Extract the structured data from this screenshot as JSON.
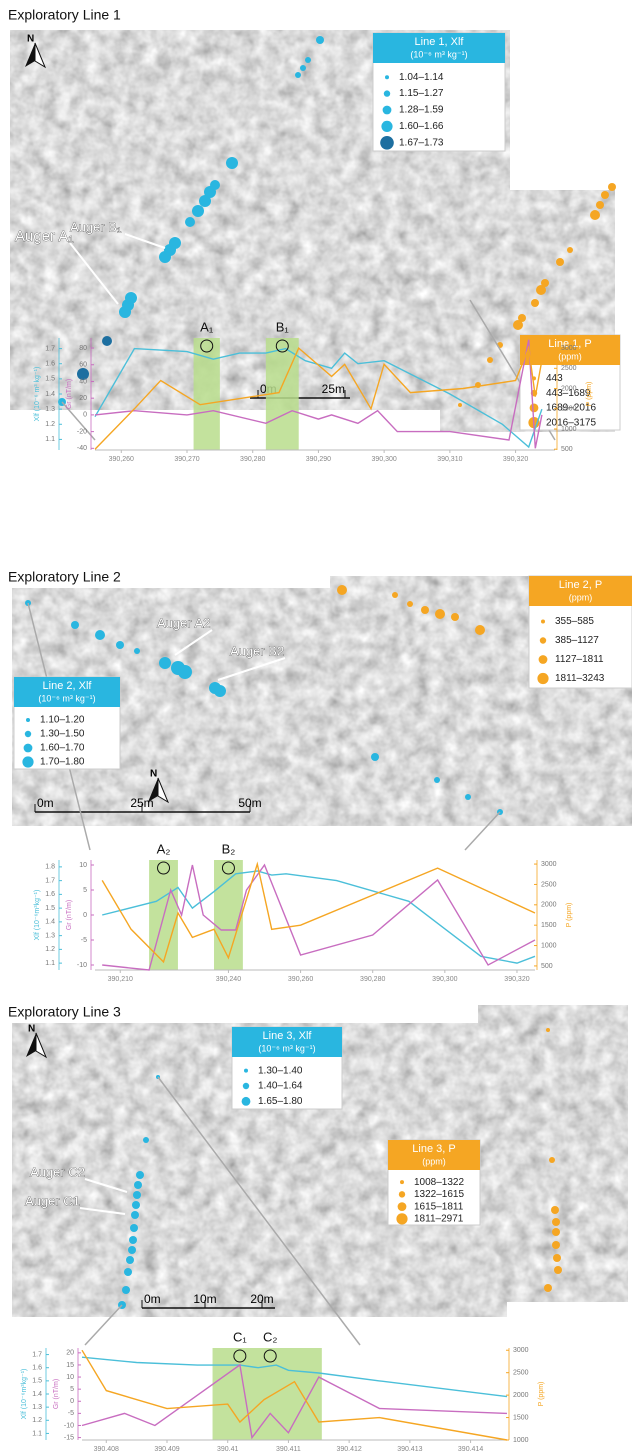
{
  "panels": [
    {
      "title": "Exploratory Line 1",
      "north": "N",
      "augers": [
        "Auger B₁",
        "Auger A₁"
      ],
      "scale": [
        "0m",
        "25m"
      ],
      "legends": [
        {
          "title": "Line 1, Xlf",
          "unit": "(10⁻⁶ m³ kg⁻¹)",
          "color": "#29b6e0",
          "entries": [
            "1.04–1.14",
            "1.15–1.27",
            "1.28–1.59",
            "1.60–1.66",
            "1.67–1.73"
          ],
          "colors": [
            "#29b6e0",
            "#29b6e0",
            "#29b6e0",
            "#29b6e0",
            "#1d6fa0"
          ]
        },
        {
          "title": "Line 1, P",
          "unit": "(ppm)",
          "color": "#f5a623",
          "entries": [
            "443",
            "443–1689",
            "1689–2016",
            "2016–3175"
          ],
          "colors": [
            "#f5a623",
            "#f5a623",
            "#f5a623",
            "#f5a623"
          ]
        }
      ],
      "chart": {
        "x": {
          "lim": [
            390256,
            390326
          ],
          "ticks": [
            {
              "value": 390260,
              "label": "390,260"
            },
            {
              "value": 390270,
              "label": "390,270"
            },
            {
              "value": 390280,
              "label": "390,280"
            },
            {
              "value": 390290,
              "label": "390,290"
            },
            {
              "value": 390300,
              "label": "390,300"
            },
            {
              "value": 390310,
              "label": "390,310"
            },
            {
              "value": 390320,
              "label": "390,320"
            }
          ]
        },
        "xlf": {
          "label": "Xlf (10⁻⁶ m³ kg⁻¹)",
          "lim": [
            1.03,
            1.77
          ],
          "ticks": [
            1.1,
            1.2,
            1.3,
            1.4,
            1.5,
            1.6,
            1.7
          ]
        },
        "gr": {
          "label": "Gr (nT/m)",
          "lim": [
            -42,
            92
          ],
          "ticks": [
            -40,
            -20,
            0,
            20,
            40,
            60,
            80
          ]
        },
        "p": {
          "label": "P (ppm)",
          "lim": [
            480,
            3250
          ],
          "ticks": [
            500,
            1000,
            1500,
            2000,
            2500,
            3000
          ]
        },
        "bands": [
          [
            390271,
            390275
          ],
          [
            390282,
            390287
          ]
        ],
        "markers": [
          {
            "label": "A₁",
            "x": 390273
          },
          {
            "label": "B₁",
            "x": 390284.5
          }
        ],
        "series": [
          {
            "axis": "xlf",
            "color": "#4bbfd9",
            "x": [
              390256,
              390262,
              390270,
              390274,
              390278,
              390282,
              390285,
              390288,
              390292,
              390294,
              390296,
              390300,
              390310,
              390318,
              390322,
              390324
            ],
            "values": [
              1.25,
              1.7,
              1.68,
              1.63,
              1.67,
              1.67,
              1.7,
              1.62,
              1.57,
              1.67,
              1.6,
              1.62,
              1.4,
              1.2,
              1.05,
              1.3
            ]
          },
          {
            "axis": "gr",
            "color": "#c86dc0",
            "x": [
              390256,
              390262,
              390270,
              390274,
              390282,
              390286,
              390290,
              390292,
              390296,
              390299,
              390302,
              390310,
              390319,
              390322,
              390323,
              390324
            ],
            "values": [
              0,
              5,
              0,
              5,
              -10,
              5,
              -5,
              0,
              -10,
              5,
              -20,
              -20,
              -30,
              90,
              -40,
              0
            ]
          },
          {
            "axis": "p",
            "color": "#f5a623",
            "x": [
              390256,
              390262,
              390266,
              390272,
              390280,
              390284,
              390287,
              390292,
              390294,
              390298,
              390300,
              390304,
              390312,
              390320,
              390322,
              390323,
              390324
            ],
            "values": [
              500,
              1500,
              2200,
              1600,
              1800,
              1900,
              3000,
              2300,
              2600,
              1500,
              2600,
              1900,
              2000,
              2200,
              3000,
              1800,
              2700
            ]
          }
        ]
      }
    },
    {
      "title": "Exploratory Line 2",
      "north": "N",
      "augers": [
        "Auger A2",
        "Auger B2"
      ],
      "scale": [
        "0m",
        "25m",
        "50m"
      ],
      "legends": [
        {
          "title": "Line 2, Xlf",
          "unit": "(10⁻⁶ m³ kg⁻¹)",
          "color": "#29b6e0",
          "entries": [
            "1.10–1.20",
            "1.30–1.50",
            "1.60–1.70",
            "1.70–1.80"
          ],
          "colors": [
            "#29b6e0",
            "#29b6e0",
            "#29b6e0",
            "#29b6e0"
          ]
        },
        {
          "title": "Line 2, P",
          "unit": "(ppm)",
          "color": "#f5a623",
          "entries": [
            "355–585",
            "385–1127",
            "1127–1811",
            "1811–3243"
          ],
          "colors": [
            "#f5a623",
            "#f5a623",
            "#f5a623",
            "#f5a623"
          ]
        }
      ],
      "chart": {
        "x": {
          "lim": [
            390203,
            390325
          ],
          "ticks": [
            {
              "value": 390210,
              "label": "390,210"
            },
            {
              "value": 390240,
              "label": "390,240"
            },
            {
              "value": 390260,
              "label": "390,260"
            },
            {
              "value": 390280,
              "label": "390,280"
            },
            {
              "value": 390300,
              "label": "390,300"
            },
            {
              "value": 390320,
              "label": "390,320"
            }
          ]
        },
        "xlf": {
          "label": "Xlf (10⁻⁶m³kg⁻¹)",
          "lim": [
            1.05,
            1.85
          ],
          "ticks": [
            1.1,
            1.2,
            1.3,
            1.4,
            1.5,
            1.6,
            1.7,
            1.8
          ]
        },
        "gr": {
          "label": "Gr (nT/m)",
          "lim": [
            -11,
            11
          ],
          "ticks": [
            -10,
            -5,
            0,
            5,
            10
          ]
        },
        "p": {
          "label": "P (ppm)",
          "lim": [
            400,
            3100
          ],
          "ticks": [
            500,
            1000,
            1500,
            2000,
            2500,
            3000
          ]
        },
        "bands": [
          [
            390218,
            390226
          ],
          [
            390236,
            390244
          ]
        ],
        "markers": [
          {
            "label": "A₂",
            "x": 390222
          },
          {
            "label": "B₂",
            "x": 390240
          }
        ],
        "series": [
          {
            "axis": "xlf",
            "color": "#4bbfd9",
            "x": [
              390205,
              390220,
              390226,
              390230,
              390236,
              390242,
              390248,
              390252,
              390256,
              390270,
              390290,
              390300,
              390310,
              390320,
              390325
            ],
            "values": [
              1.45,
              1.55,
              1.65,
              1.5,
              1.62,
              1.75,
              1.77,
              1.74,
              1.75,
              1.7,
              1.55,
              1.35,
              1.15,
              1.1,
              1.15
            ]
          },
          {
            "axis": "gr",
            "color": "#c86dc0",
            "x": [
              390205,
              390218,
              390224,
              390227,
              390230,
              390233,
              390238,
              390242,
              390245,
              390250,
              390260,
              390280,
              390298,
              390312,
              390325
            ],
            "values": [
              -10,
              -11,
              5,
              0,
              10,
              0,
              -3,
              -3,
              5,
              10,
              -8,
              -4,
              7,
              -10,
              -5
            ]
          },
          {
            "axis": "p",
            "color": "#f5a623",
            "x": [
              390205,
              390213,
              390222,
              390226,
              390230,
              390236,
              390240,
              390248,
              390252,
              390260,
              390298,
              390325
            ],
            "values": [
              2600,
              1400,
              600,
              1800,
              1200,
              1400,
              700,
              3000,
              1400,
              1500,
              2900,
              1800
            ]
          }
        ]
      }
    },
    {
      "title": "Exploratory Line 3",
      "north": "N",
      "augers": [
        "Auger C2",
        "Auger C1"
      ],
      "scale": [
        "0m",
        "10m",
        "20m"
      ],
      "legends": [
        {
          "title": "Line 3, Xlf",
          "unit": "(10⁻⁶ m³ kg⁻¹)",
          "color": "#29b6e0",
          "entries": [
            "1.30–1.40",
            "1.40–1.64",
            "1.65–1.80"
          ],
          "colors": [
            "#29b6e0",
            "#29b6e0",
            "#29b6e0"
          ]
        },
        {
          "title": "Line 3, P",
          "unit": "(ppm)",
          "color": "#f5a623",
          "entries": [
            "1008–1322",
            "1322–1615",
            "1615–1811",
            "1811–2971"
          ],
          "colors": [
            "#f5a623",
            "#f5a623",
            "#f5a623",
            "#f5a623"
          ]
        }
      ],
      "chart": {
        "x": {
          "lim": [
            390.4076,
            390.4146
          ],
          "ticks": [
            390.408,
            390.409,
            390.41,
            390.411,
            390.412,
            390.413,
            390.414
          ]
        },
        "xlf": {
          "label": "Xlf (10⁻⁶m³kg⁻¹)",
          "lim": [
            1.05,
            1.75
          ],
          "ticks": [
            1.1,
            1.2,
            1.3,
            1.4,
            1.5,
            1.6,
            1.7
          ]
        },
        "gr": {
          "label": "Gr (nT/m)",
          "lim": [
            -16,
            22
          ],
          "ticks": [
            -15,
            -10,
            -5,
            0,
            5,
            10,
            15,
            20
          ]
        },
        "p": {
          "label": "P (ppm)",
          "lim": [
            1000,
            3050
          ],
          "ticks": [
            1000,
            1500,
            2000,
            2500,
            3000
          ]
        },
        "bands": [
          [
            390.40975,
            390.41155
          ]
        ],
        "markers": [
          {
            "label": "C₁",
            "x": 390.4102
          },
          {
            "label": "C₂",
            "x": 390.4107
          }
        ],
        "series": [
          {
            "axis": "xlf",
            "color": "#4bbfd9",
            "x": [
              390.4076,
              390.4085,
              390.4095,
              390.4102,
              390.4105,
              390.4108,
              390.411,
              390.4115,
              390.4125,
              390.4146
            ],
            "values": [
              1.68,
              1.64,
              1.62,
              1.62,
              1.6,
              1.62,
              1.58,
              1.56,
              1.5,
              1.38
            ]
          },
          {
            "axis": "gr",
            "color": "#c86dc0",
            "x": [
              390.4076,
              390.4083,
              390.4088,
              390.4102,
              390.4104,
              390.4107,
              390.411,
              390.4115,
              390.4125,
              390.4146
            ],
            "values": [
              -10,
              -5,
              -10,
              15,
              -15,
              -5,
              -13,
              10,
              -3,
              -5
            ]
          },
          {
            "axis": "p",
            "color": "#f5a623",
            "x": [
              390.4076,
              390.408,
              390.409,
              390.41,
              390.4102,
              390.4106,
              390.4111,
              390.4115,
              390.4125,
              390.4146
            ],
            "values": [
              3000,
              2100,
              1700,
              1800,
              1400,
              1900,
              2300,
              1400,
              1500,
              1000
            ]
          }
        ]
      }
    }
  ]
}
